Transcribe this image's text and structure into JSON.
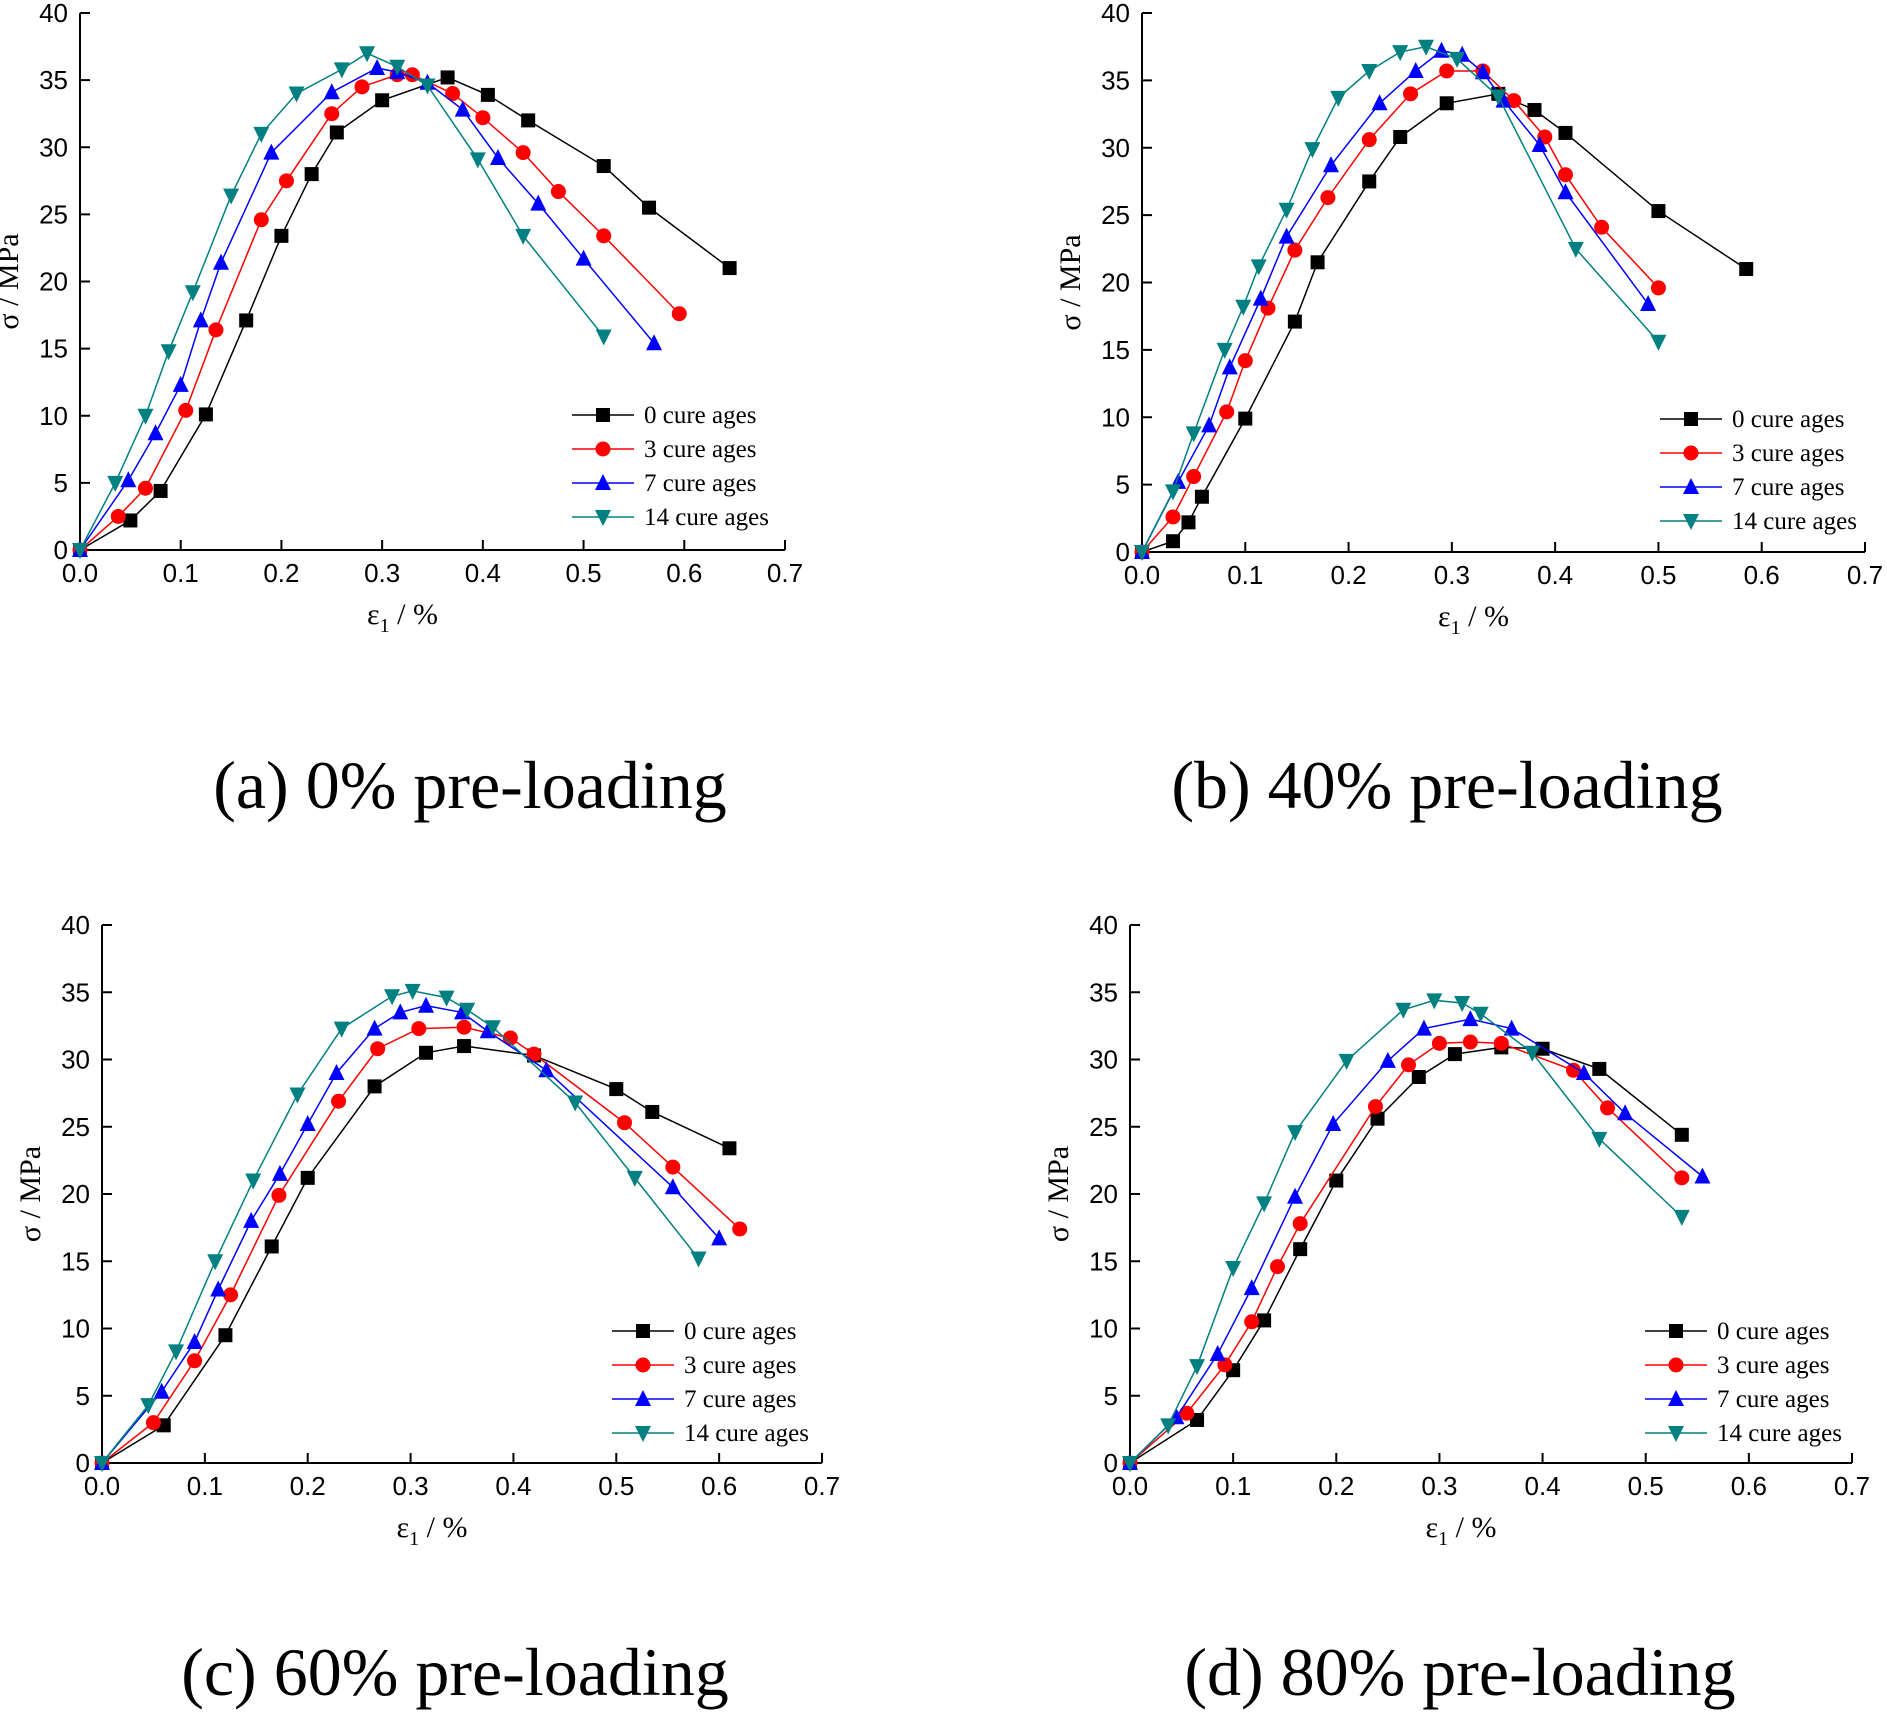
{
  "chart_data": [
    {
      "type": "line",
      "caption": "(a) 0% pre-loading",
      "xlabel_main": "ε",
      "xlabel_sub": "1",
      "xlabel_unit": " / %",
      "ylabel": "σ / MPa",
      "xlim": [
        0,
        0.7
      ],
      "ylim": [
        0,
        40
      ],
      "xticks": [
        "0.0",
        "0.1",
        "0.2",
        "0.3",
        "0.4",
        "0.5",
        "0.6",
        "0.7"
      ],
      "yticks": [
        "0",
        "5",
        "10",
        "15",
        "20",
        "25",
        "30",
        "35",
        "40"
      ],
      "legend_position": "lower-right",
      "series": [
        {
          "name": "0 cure ages",
          "color": "#000000",
          "marker": "square",
          "x": [
            0,
            0.05,
            0.08,
            0.125,
            0.165,
            0.2,
            0.23,
            0.255,
            0.3,
            0.365,
            0.405,
            0.445,
            0.52,
            0.565,
            0.645
          ],
          "y": [
            0,
            2.2,
            4.4,
            10.1,
            17.1,
            23.4,
            28.0,
            31.1,
            33.5,
            35.2,
            33.9,
            32.0,
            28.6,
            25.5,
            21.0
          ]
        },
        {
          "name": "3 cure ages",
          "color": "#ff0000",
          "marker": "circle",
          "x": [
            0,
            0.038,
            0.065,
            0.105,
            0.135,
            0.18,
            0.205,
            0.25,
            0.28,
            0.315,
            0.33,
            0.37,
            0.4,
            0.44,
            0.475,
            0.52,
            0.595
          ],
          "y": [
            0,
            2.5,
            4.6,
            10.4,
            16.4,
            24.6,
            27.5,
            32.5,
            34.5,
            35.4,
            35.4,
            34.0,
            32.2,
            29.6,
            26.7,
            23.4,
            17.6
          ]
        },
        {
          "name": "7 cure ages",
          "color": "#0000ff",
          "marker": "triangle-up",
          "x": [
            0,
            0.048,
            0.075,
            0.1,
            0.12,
            0.14,
            0.19,
            0.25,
            0.295,
            0.315,
            0.345,
            0.38,
            0.415,
            0.455,
            0.5,
            0.57
          ],
          "y": [
            0,
            5.2,
            8.7,
            12.3,
            17.1,
            21.4,
            29.6,
            34.1,
            35.9,
            35.6,
            34.8,
            32.8,
            29.2,
            25.8,
            21.7,
            15.4
          ]
        },
        {
          "name": "14 cure ages",
          "color": "#008080",
          "marker": "triangle-down",
          "x": [
            0,
            0.035,
            0.065,
            0.088,
            0.112,
            0.15,
            0.18,
            0.215,
            0.26,
            0.285,
            0.315,
            0.345,
            0.395,
            0.44,
            0.52
          ],
          "y": [
            0,
            5.0,
            10.0,
            14.8,
            19.2,
            26.4,
            31.0,
            34.0,
            35.8,
            37.0,
            36.0,
            34.6,
            29.1,
            23.4,
            15.9
          ]
        }
      ]
    },
    {
      "type": "line",
      "caption": "(b) 40% pre-loading",
      "xlabel_main": "ε",
      "xlabel_sub": "1",
      "xlabel_unit": " / %",
      "ylabel": "σ / MPa",
      "xlim": [
        0,
        0.7
      ],
      "ylim": [
        0,
        40
      ],
      "xticks": [
        "0.0",
        "0.1",
        "0.2",
        "0.3",
        "0.4",
        "0.5",
        "0.6",
        "0.7"
      ],
      "yticks": [
        "0",
        "5",
        "10",
        "15",
        "20",
        "25",
        "30",
        "35",
        "40"
      ],
      "legend_position": "lower-right",
      "series": [
        {
          "name": "0 cure ages",
          "color": "#000000",
          "marker": "square",
          "x": [
            0,
            0.03,
            0.045,
            0.058,
            0.1,
            0.148,
            0.17,
            0.22,
            0.25,
            0.295,
            0.345,
            0.38,
            0.41,
            0.5,
            0.585
          ],
          "y": [
            0,
            0.8,
            2.2,
            4.1,
            9.9,
            17.1,
            21.5,
            27.5,
            30.8,
            33.3,
            34.0,
            32.8,
            31.1,
            25.3,
            21.0
          ]
        },
        {
          "name": "3 cure ages",
          "color": "#ff0000",
          "marker": "circle",
          "x": [
            0,
            0.03,
            0.05,
            0.082,
            0.1,
            0.122,
            0.148,
            0.18,
            0.22,
            0.26,
            0.295,
            0.33,
            0.36,
            0.39,
            0.41,
            0.445,
            0.5
          ],
          "y": [
            0,
            2.6,
            5.6,
            10.4,
            14.2,
            18.1,
            22.4,
            26.3,
            30.6,
            34.0,
            35.7,
            35.7,
            33.5,
            30.8,
            28.0,
            24.1,
            19.6
          ]
        },
        {
          "name": "7 cure ages",
          "color": "#0000ff",
          "marker": "triangle-up",
          "x": [
            0,
            0.035,
            0.065,
            0.085,
            0.115,
            0.14,
            0.183,
            0.23,
            0.265,
            0.29,
            0.31,
            0.33,
            0.35,
            0.385,
            0.41,
            0.49
          ],
          "y": [
            0,
            5.2,
            9.4,
            13.7,
            18.8,
            23.4,
            28.7,
            33.3,
            35.7,
            37.2,
            36.9,
            35.6,
            33.5,
            30.2,
            26.7,
            18.4
          ]
        },
        {
          "name": "14 cure ages",
          "color": "#008080",
          "marker": "triangle-down",
          "x": [
            0,
            0.03,
            0.05,
            0.08,
            0.098,
            0.113,
            0.14,
            0.165,
            0.19,
            0.22,
            0.25,
            0.275,
            0.305,
            0.345,
            0.42,
            0.5
          ],
          "y": [
            0,
            4.5,
            8.8,
            15.0,
            18.2,
            21.2,
            25.4,
            29.9,
            33.7,
            35.7,
            37.1,
            37.5,
            36.6,
            33.8,
            22.5,
            15.6
          ]
        }
      ]
    },
    {
      "type": "line",
      "caption": "(c) 60% pre-loading",
      "xlabel_main": "ε",
      "xlabel_sub": "1",
      "xlabel_unit": " / %",
      "ylabel": "σ / MPa",
      "xlim": [
        0,
        0.7
      ],
      "ylim": [
        0,
        40
      ],
      "xticks": [
        "0.0",
        "0.1",
        "0.2",
        "0.3",
        "0.4",
        "0.5",
        "0.6",
        "0.7"
      ],
      "yticks": [
        "0",
        "5",
        "10",
        "15",
        "20",
        "25",
        "30",
        "35",
        "40"
      ],
      "legend_position": "lower-right",
      "series": [
        {
          "name": "0 cure ages",
          "color": "#000000",
          "marker": "square",
          "x": [
            0,
            0.06,
            0.12,
            0.165,
            0.2,
            0.265,
            0.315,
            0.352,
            0.42,
            0.5,
            0.535,
            0.61
          ],
          "y": [
            0,
            2.8,
            9.5,
            16.1,
            21.2,
            28.0,
            30.5,
            31.0,
            30.3,
            27.8,
            26.1,
            23.4
          ]
        },
        {
          "name": "3 cure ages",
          "color": "#ff0000",
          "marker": "circle",
          "x": [
            0,
            0.05,
            0.09,
            0.125,
            0.172,
            0.23,
            0.268,
            0.308,
            0.352,
            0.397,
            0.42,
            0.508,
            0.555,
            0.62
          ],
          "y": [
            0,
            3.0,
            7.6,
            12.5,
            19.9,
            26.9,
            30.8,
            32.3,
            32.4,
            31.6,
            30.4,
            25.3,
            22.0,
            17.4
          ]
        },
        {
          "name": "7 cure ages",
          "color": "#0000ff",
          "marker": "triangle-up",
          "x": [
            0,
            0.058,
            0.09,
            0.113,
            0.145,
            0.173,
            0.2,
            0.228,
            0.265,
            0.29,
            0.315,
            0.35,
            0.375,
            0.432,
            0.555,
            0.6
          ],
          "y": [
            0,
            5.3,
            9.0,
            12.9,
            18.0,
            21.5,
            25.2,
            29.0,
            32.3,
            33.5,
            34.0,
            33.5,
            32.1,
            29.2,
            20.5,
            16.7
          ]
        },
        {
          "name": "14 cure ages",
          "color": "#008080",
          "marker": "triangle-down",
          "x": [
            0,
            0.045,
            0.072,
            0.11,
            0.147,
            0.19,
            0.233,
            0.282,
            0.302,
            0.335,
            0.355,
            0.38,
            0.46,
            0.518,
            0.58
          ],
          "y": [
            0,
            4.3,
            8.3,
            15.0,
            21.0,
            27.4,
            32.3,
            34.7,
            35.1,
            34.6,
            33.7,
            32.4,
            26.8,
            21.2,
            15.2
          ]
        }
      ]
    },
    {
      "type": "line",
      "caption": "(d) 80% pre-loading",
      "xlabel_main": "ε",
      "xlabel_sub": "1",
      "xlabel_unit": " / %",
      "ylabel": "σ / MPa",
      "xlim": [
        0,
        0.7
      ],
      "ylim": [
        0,
        40
      ],
      "xticks": [
        "0.0",
        "0.1",
        "0.2",
        "0.3",
        "0.4",
        "0.5",
        "0.6",
        "0.7"
      ],
      "yticks": [
        "0",
        "5",
        "10",
        "15",
        "20",
        "25",
        "30",
        "35",
        "40"
      ],
      "legend_position": "lower-right",
      "series": [
        {
          "name": "0 cure ages",
          "color": "#000000",
          "marker": "square",
          "x": [
            0,
            0.065,
            0.1,
            0.13,
            0.165,
            0.2,
            0.24,
            0.28,
            0.315,
            0.36,
            0.4,
            0.455,
            0.535
          ],
          "y": [
            0,
            3.2,
            6.9,
            10.6,
            15.9,
            21.0,
            25.6,
            28.7,
            30.4,
            30.9,
            30.8,
            29.3,
            24.4
          ]
        },
        {
          "name": "3 cure ages",
          "color": "#ff0000",
          "marker": "circle",
          "x": [
            0,
            0.055,
            0.092,
            0.118,
            0.143,
            0.165,
            0.238,
            0.27,
            0.3,
            0.33,
            0.36,
            0.43,
            0.463,
            0.535
          ],
          "y": [
            0,
            3.7,
            7.3,
            10.5,
            14.6,
            17.8,
            26.5,
            29.6,
            31.2,
            31.3,
            31.2,
            29.2,
            26.4,
            21.2
          ]
        },
        {
          "name": "7 cure ages",
          "color": "#0000ff",
          "marker": "triangle-up",
          "x": [
            0,
            0.045,
            0.085,
            0.118,
            0.16,
            0.197,
            0.25,
            0.285,
            0.33,
            0.37,
            0.44,
            0.48,
            0.555
          ],
          "y": [
            0,
            3.4,
            8.1,
            13.0,
            19.8,
            25.2,
            29.9,
            32.3,
            33.0,
            32.3,
            29.0,
            26.0,
            21.3
          ]
        },
        {
          "name": "14 cure ages",
          "color": "#008080",
          "marker": "triangle-down",
          "x": [
            0,
            0.037,
            0.065,
            0.1,
            0.13,
            0.16,
            0.21,
            0.265,
            0.295,
            0.322,
            0.34,
            0.39,
            0.455,
            0.535
          ],
          "y": [
            0,
            2.8,
            7.2,
            14.5,
            19.3,
            24.6,
            29.9,
            33.7,
            34.4,
            34.2,
            33.4,
            30.5,
            24.1,
            18.3
          ]
        }
      ]
    }
  ]
}
